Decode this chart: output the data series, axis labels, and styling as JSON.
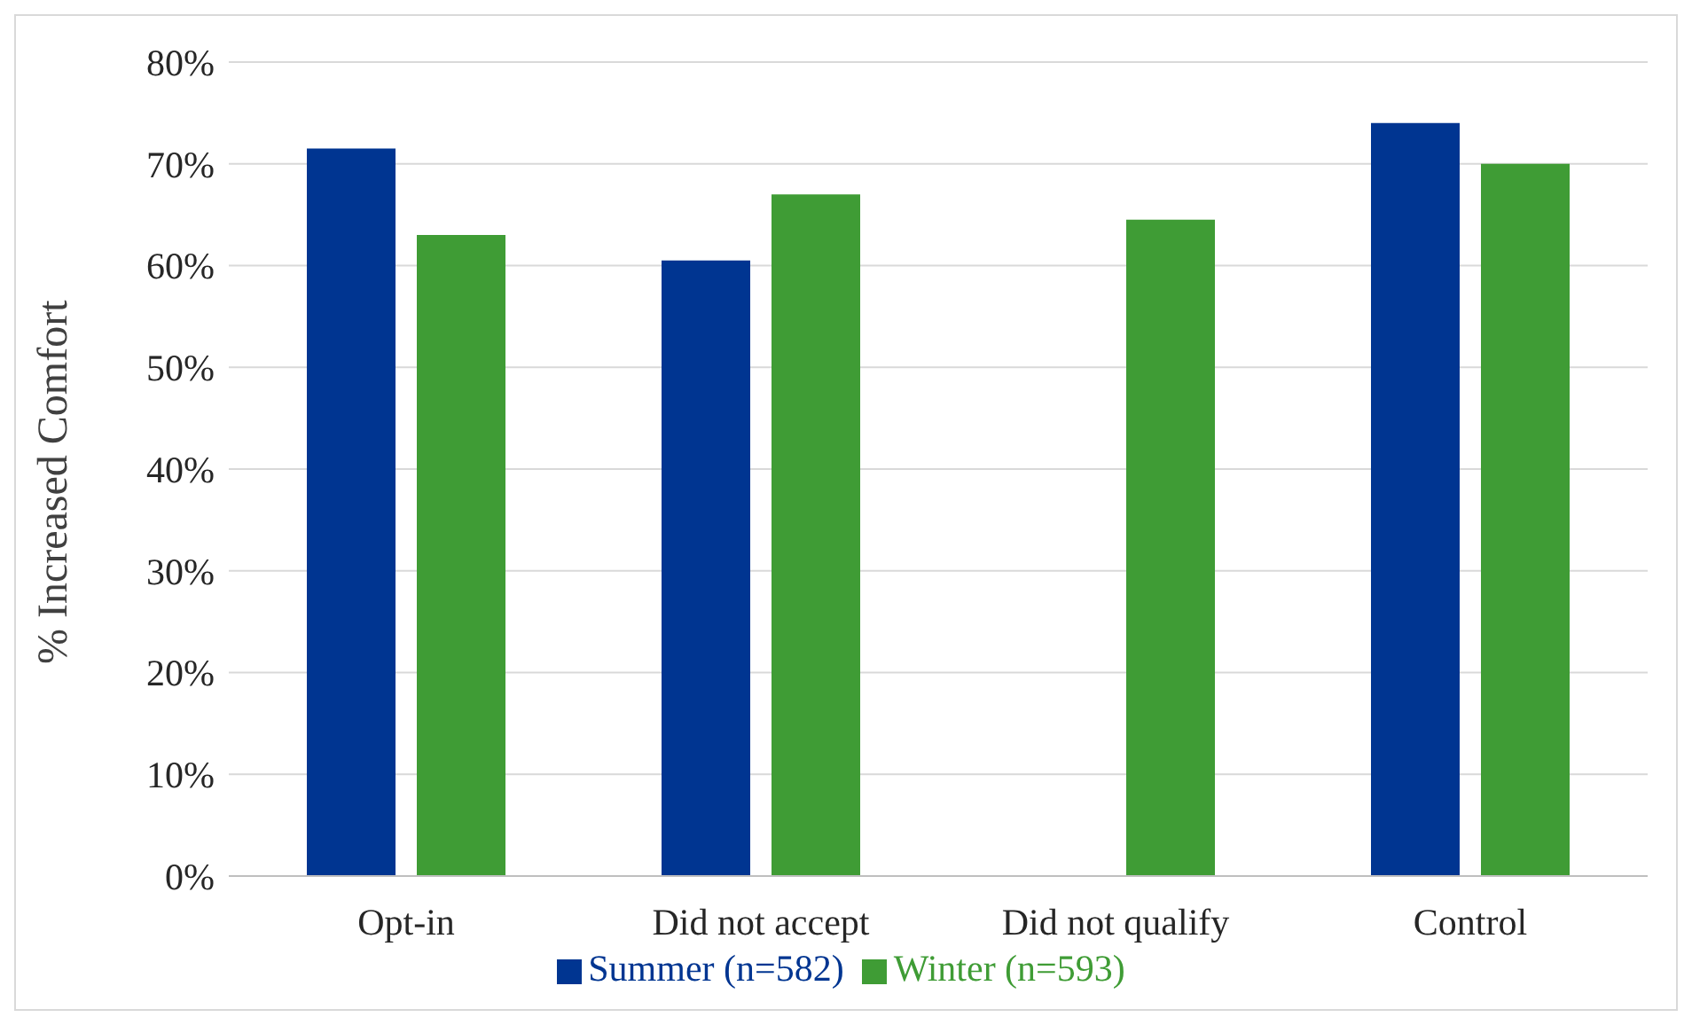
{
  "chart_data": {
    "type": "bar",
    "ylabel": "% Increased Comfort",
    "categories": [
      "Opt-in",
      "Did not accept",
      "Did not qualify",
      "Control"
    ],
    "series": [
      {
        "name": "Summer (n=582)",
        "color": "#003591",
        "values": [
          71.5,
          60.5,
          null,
          74
        ]
      },
      {
        "name": "Winter (n=593)",
        "color": "#3f9c35",
        "values": [
          63,
          67,
          64.5,
          70
        ]
      }
    ],
    "ylim": [
      0,
      80
    ],
    "yticks": [
      {
        "value": 0,
        "label": "0%"
      },
      {
        "value": 10,
        "label": "10%"
      },
      {
        "value": 20,
        "label": "20%"
      },
      {
        "value": 30,
        "label": "30%"
      },
      {
        "value": 40,
        "label": "40%"
      },
      {
        "value": 50,
        "label": "50%"
      },
      {
        "value": 60,
        "label": "60%"
      },
      {
        "value": 70,
        "label": "70%"
      },
      {
        "value": 80,
        "label": "80%"
      }
    ],
    "grid": "y",
    "legend": "bottom"
  }
}
